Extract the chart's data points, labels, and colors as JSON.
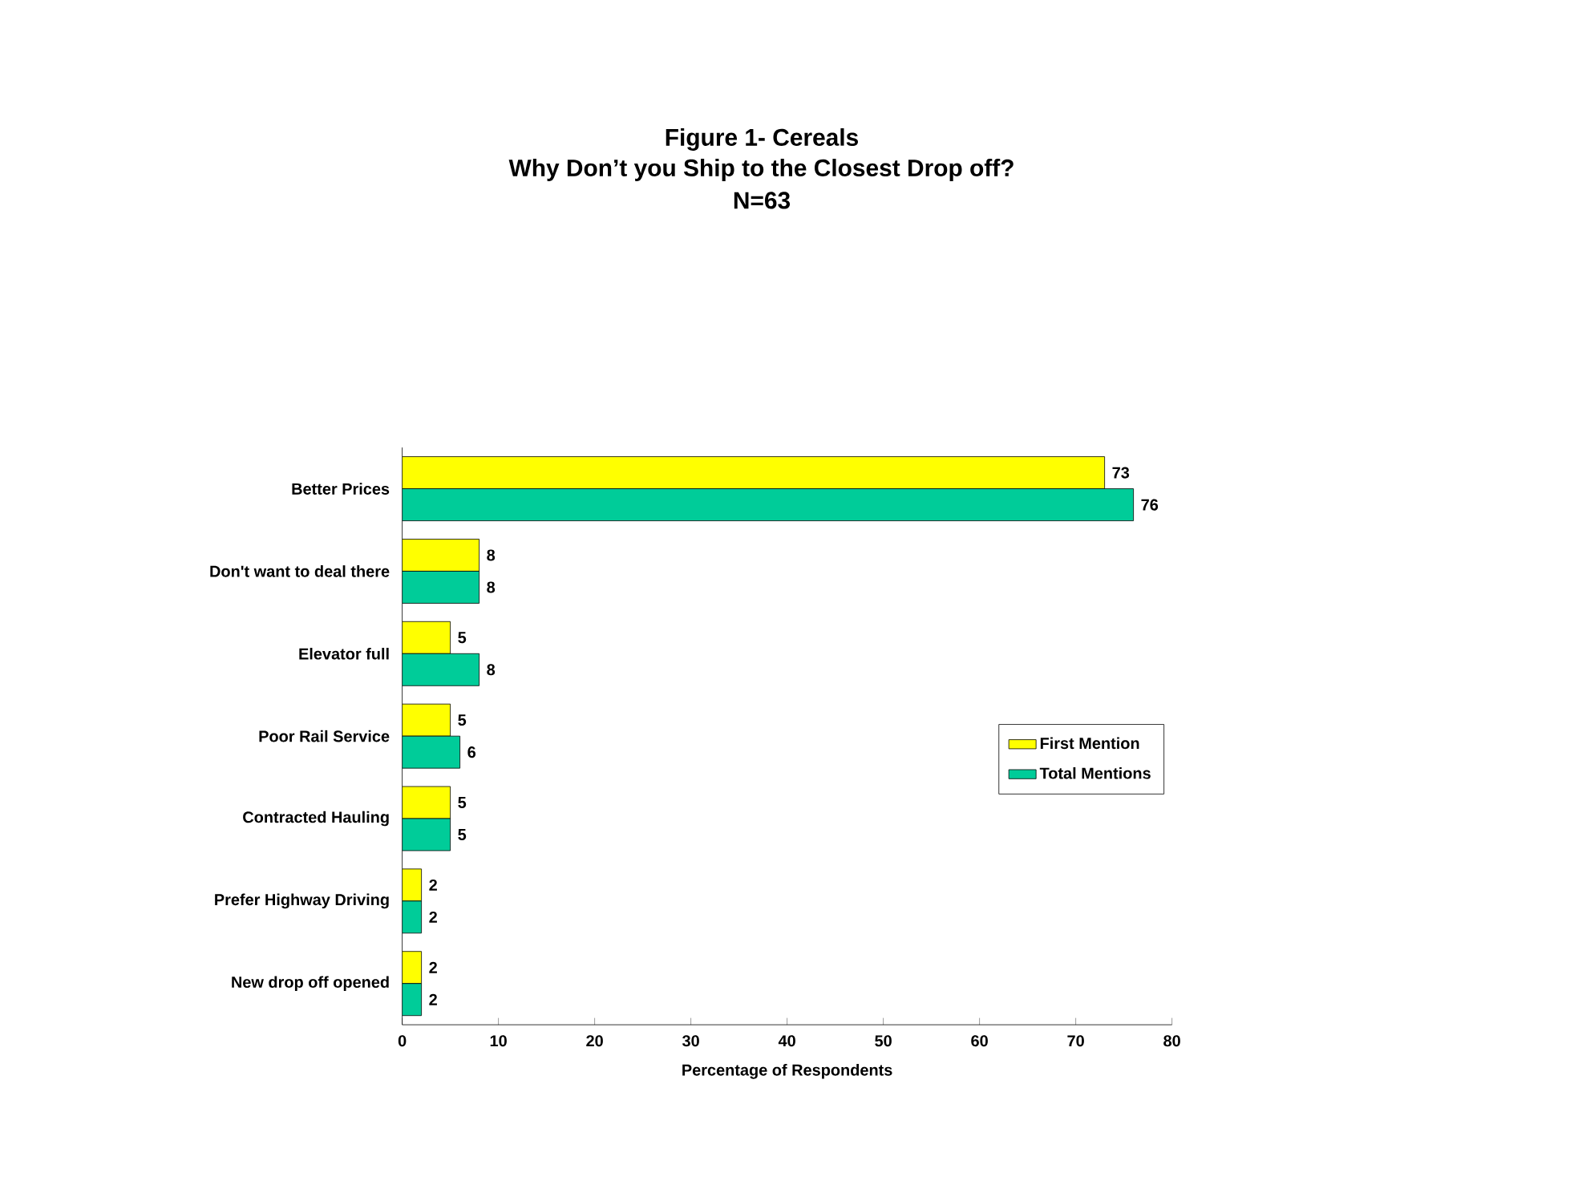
{
  "chart_data": {
    "type": "bar",
    "orientation": "horizontal",
    "title": "Figure 1- Cereals",
    "subtitle": "Why Don’t you Ship to the Closest Drop off?",
    "annotations": [
      "N=63"
    ],
    "categories": [
      "Better Prices",
      "Don't want to deal there",
      "Elevator full",
      "Poor Rail Service",
      "Contracted Hauling",
      "Prefer Highway Driving",
      "New drop off opened"
    ],
    "series": [
      {
        "name": "First Mention",
        "color": "#ffff00",
        "values": [
          73,
          8,
          5,
          5,
          5,
          2,
          2
        ]
      },
      {
        "name": "Total Mentions",
        "color": "#00cc99",
        "values": [
          76,
          8,
          8,
          6,
          5,
          2,
          2
        ]
      }
    ],
    "xlabel": "Percentage of Respondents",
    "xlim": [
      0,
      80
    ],
    "xticks": [
      0,
      10,
      20,
      30,
      40,
      50,
      60,
      70,
      80
    ],
    "data_labels": true,
    "legend": "right",
    "grid": false
  }
}
